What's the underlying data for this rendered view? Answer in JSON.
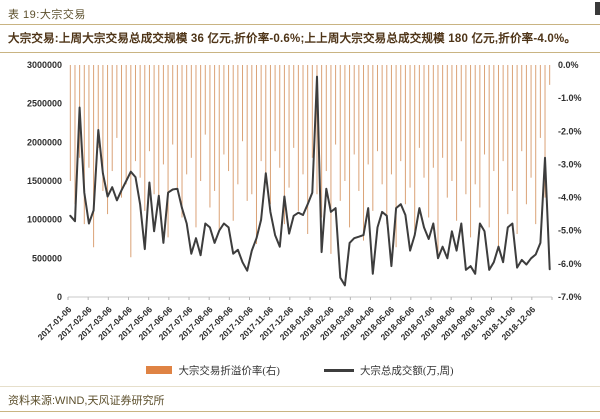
{
  "header": {
    "title": "表 19:大宗交易"
  },
  "summary": {
    "text": "大宗交易:上周大宗交易总成交规模 36 亿元,折价率-0.6%;上上周大宗交易总成交规模 180 亿元,折价率-4.0%。"
  },
  "footer": {
    "source": "资料来源:WIND,天风证券研究所"
  },
  "colors": {
    "bar_orange": "#D28B55",
    "legend_orange": "#DF8344",
    "line_dark": "#3D3D3D",
    "title_brown": "#5C4F2C",
    "summary_brown": "#4E3417",
    "separator_tan": "#C9B482"
  },
  "chart_data": {
    "type": "bar",
    "subtype": "bar+line dual-axis combo, weekly data",
    "legend_position": "bottom",
    "grid": false,
    "x_tick_labels": [
      "2017-01-06",
      "2017-02-06",
      "2017-03-06",
      "2017-04-06",
      "2017-05-06",
      "2017-06-06",
      "2017-07-06",
      "2017-08-06",
      "2017-09-06",
      "2017-10-06",
      "2017-11-06",
      "2017-12-06",
      "2018-01-06",
      "2018-02-06",
      "2018-03-06",
      "2018-04-06",
      "2018-05-06",
      "2018-06-06",
      "2018-07-06",
      "2018-08-06",
      "2018-09-06",
      "2018-10-06",
      "2018-11-06",
      "2018-12-06"
    ],
    "left_axis": {
      "min": 0,
      "max": 3000000,
      "tick_labels": [
        "0",
        "500000",
        "1000000",
        "1500000",
        "2000000",
        "2500000",
        "3000000"
      ]
    },
    "right_axis": {
      "min": -7.0,
      "max": 0.0,
      "tick_labels": [
        "0.0%",
        "-1.0%",
        "-2.0%",
        "-3.0%",
        "-4.0%",
        "-5.0%",
        "-6.0%",
        "-7.0%"
      ]
    },
    "series": [
      {
        "name": "大宗交易折溢价率(右)",
        "type": "bar",
        "axis": "right",
        "unit": "%",
        "color": "#D28B55",
        "values": [
          -3.5,
          -4.2,
          -2.8,
          -4.8,
          -3.1,
          -5.5,
          -2.5,
          -3.8,
          -4.5,
          -3.2,
          -2.2,
          -4.0,
          -3.6,
          -5.8,
          -2.9,
          -3.4,
          -4.4,
          -2.6,
          -3.9,
          -4.1,
          -3.0,
          -5.2,
          -2.4,
          -3.7,
          -4.6,
          -3.3,
          -2.8,
          -4.9,
          -3.5,
          -2.1,
          -4.3,
          -3.8,
          -5.0,
          -2.7,
          -3.2,
          -4.7,
          -3.6,
          -2.3,
          -4.1,
          -3.9,
          -5.4,
          -2.9,
          -3.4,
          -4.2,
          -2.6,
          -3.1,
          -4.8,
          -3.7,
          -2.5,
          -4.4,
          -3.3,
          -5.1,
          -2.8,
          -3.9,
          -4.6,
          -3.2,
          -5.7,
          -2.4,
          -4.1,
          -3.5,
          -4.9,
          -2.7,
          -3.8,
          -5.3,
          -3.0,
          -4.4,
          -2.6,
          -3.6,
          -4.8,
          -3.3,
          -5.5,
          -2.9,
          -4.2,
          -3.7,
          -5.0,
          -2.5,
          -3.4,
          -4.6,
          -3.1,
          -5.8,
          -2.8,
          -4.0,
          -3.5,
          -4.7,
          -2.3,
          -3.9,
          -5.2,
          -3.6,
          -4.3,
          -2.7,
          -4.9,
          -3.2,
          -5.6,
          -2.9,
          -4.5,
          -3.8,
          -5.1,
          -2.6,
          -4.2,
          -3.4,
          -4.8,
          -2.2,
          -4.0,
          -0.6
        ]
      },
      {
        "name": "大宗总成交额(万,周)",
        "type": "line",
        "axis": "left",
        "unit": "万",
        "color": "#3D3D3D",
        "values": [
          1050000,
          980000,
          2450000,
          1350000,
          950000,
          1120000,
          2160000,
          1600000,
          1300000,
          1420000,
          1250000,
          1380000,
          1500000,
          1620000,
          1550000,
          1200000,
          620000,
          1480000,
          850000,
          1310000,
          700000,
          1350000,
          1390000,
          1400000,
          1150000,
          950000,
          560000,
          760000,
          540000,
          950000,
          900000,
          700000,
          860000,
          950000,
          900000,
          560000,
          610000,
          450000,
          340000,
          600000,
          760000,
          1000000,
          1600000,
          1100000,
          800000,
          650000,
          1300000,
          820000,
          1050000,
          1090000,
          1060000,
          1200000,
          1350000,
          2850000,
          580000,
          1400000,
          1100000,
          1150000,
          250000,
          150000,
          700000,
          760000,
          780000,
          800000,
          1150000,
          300000,
          900000,
          1100000,
          1050000,
          400000,
          1150000,
          1200000,
          1060000,
          600000,
          800000,
          1150000,
          900000,
          750000,
          950000,
          500000,
          650000,
          500000,
          850000,
          600000,
          950000,
          350000,
          400000,
          300000,
          950000,
          850000,
          350000,
          450000,
          650000,
          450000,
          900000,
          950000,
          380000,
          480000,
          420000,
          500000,
          550000,
          700000,
          1800000,
          360000
        ]
      }
    ]
  }
}
